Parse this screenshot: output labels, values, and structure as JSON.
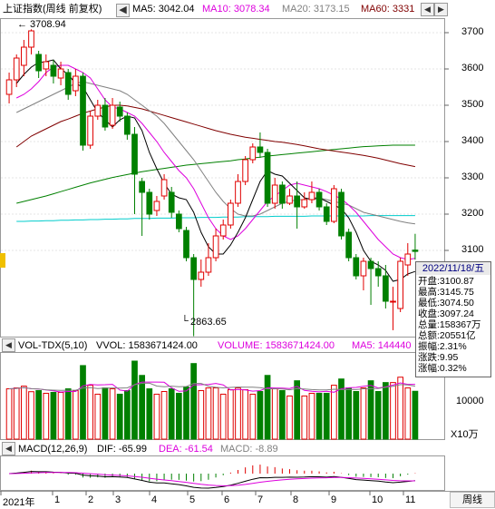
{
  "header": {
    "title": "上证指数(周线 前复权)",
    "ma5": "MA5: 3042.04",
    "ma10": "MA10: 3078.34",
    "ma20": "MA20: 3173.15",
    "ma60": "MA60: 3331",
    "colors": {
      "ma5": "#000000",
      "ma10": "#dd00dd",
      "ma20": "#808080",
      "ma60": "#800000",
      "ma120": "#008000",
      "ma250": "#00cccc"
    }
  },
  "price_axis": [
    "3700",
    "3600",
    "3500",
    "3400",
    "3300",
    "3200",
    "3100"
  ],
  "annotations": {
    "high": "3708.94",
    "low": "2863.65"
  },
  "volume": {
    "title": "VOL-TDX(5,10)",
    "vvol": "VVOL: 1583671424.00",
    "volume": "VOLUME: 1583671424.00",
    "ma5": "MA5: 144440",
    "axis_label": "10000",
    "unit": "X10万"
  },
  "macd": {
    "title": "MACD(12,26,9)",
    "dif": "DIF: -65.99",
    "dea": "DEA: -61.54",
    "macd": "MACD: -8.89"
  },
  "time_axis": [
    "2021年",
    "1",
    "2",
    "3",
    "4",
    "5",
    "6",
    "7",
    "8",
    "9",
    "10",
    "11"
  ],
  "period_button": "周线",
  "info_panel": {
    "date": "2022/11/18/五",
    "rows": [
      {
        "label": "开盘",
        "value": "3100.87"
      },
      {
        "label": "最高",
        "value": "3145.75"
      },
      {
        "label": "最低",
        "value": "3074.50"
      },
      {
        "label": "收盘",
        "value": "3097.24"
      },
      {
        "label": "总量",
        "value": "158367万"
      },
      {
        "label": "总额",
        "value": "20551亿"
      },
      {
        "label": "振幅",
        "value": "2.31%"
      },
      {
        "label": "涨跌",
        "value": "9.95"
      },
      {
        "label": "涨幅",
        "value": "0.32%"
      }
    ]
  },
  "chart_data": {
    "type": "candlestick",
    "price_ylim": [
      2860,
      3740
    ],
    "candles": [
      {
        "o": 3530,
        "c": 3570,
        "h": 3590,
        "l": 3505
      },
      {
        "o": 3570,
        "c": 3630,
        "h": 3640,
        "l": 3550
      },
      {
        "o": 3610,
        "c": 3660,
        "h": 3680,
        "l": 3580
      },
      {
        "o": 3660,
        "c": 3705,
        "h": 3708.94,
        "l": 3640
      },
      {
        "o": 3640,
        "c": 3595,
        "h": 3650,
        "l": 3575
      },
      {
        "o": 3600,
        "c": 3620,
        "h": 3640,
        "l": 3580
      },
      {
        "o": 3610,
        "c": 3580,
        "h": 3625,
        "l": 3560
      },
      {
        "o": 3575,
        "c": 3600,
        "h": 3620,
        "l": 3555
      },
      {
        "o": 3590,
        "c": 3530,
        "h": 3600,
        "l": 3515
      },
      {
        "o": 3540,
        "c": 3580,
        "h": 3600,
        "l": 3525
      },
      {
        "o": 3580,
        "c": 3390,
        "h": 3590,
        "l": 3375
      },
      {
        "o": 3390,
        "c": 3470,
        "h": 3485,
        "l": 3380
      },
      {
        "o": 3470,
        "c": 3500,
        "h": 3515,
        "l": 3460
      },
      {
        "o": 3500,
        "c": 3440,
        "h": 3520,
        "l": 3430
      },
      {
        "o": 3445,
        "c": 3500,
        "h": 3520,
        "l": 3435
      },
      {
        "o": 3495,
        "c": 3470,
        "h": 3510,
        "l": 3455
      },
      {
        "o": 3470,
        "c": 3420,
        "h": 3480,
        "l": 3405
      },
      {
        "o": 3420,
        "c": 3310,
        "h": 3440,
        "l": 3200
      },
      {
        "o": 3290,
        "c": 3260,
        "h": 3300,
        "l": 3140
      },
      {
        "o": 3260,
        "c": 3200,
        "h": 3270,
        "l": 3185
      },
      {
        "o": 3210,
        "c": 3235,
        "h": 3250,
        "l": 3195
      },
      {
        "o": 3250,
        "c": 3295,
        "h": 3310,
        "l": 3240
      },
      {
        "o": 3260,
        "c": 3205,
        "h": 3275,
        "l": 3190
      },
      {
        "o": 3200,
        "c": 3160,
        "h": 3210,
        "l": 3150
      },
      {
        "o": 3155,
        "c": 3080,
        "h": 3165,
        "l": 3070
      },
      {
        "o": 3080,
        "c": 3020,
        "h": 3090,
        "l": 2863.65
      },
      {
        "o": 3020,
        "c": 3040,
        "h": 3075,
        "l": 3000
      },
      {
        "o": 3040,
        "c": 3080,
        "h": 3120,
        "l": 3030
      },
      {
        "o": 3080,
        "c": 3140,
        "h": 3160,
        "l": 3070
      },
      {
        "o": 3140,
        "c": 3170,
        "h": 3185,
        "l": 3130
      },
      {
        "o": 3170,
        "c": 3230,
        "h": 3240,
        "l": 3160
      },
      {
        "o": 3230,
        "c": 3290,
        "h": 3310,
        "l": 3220
      },
      {
        "o": 3290,
        "c": 3350,
        "h": 3360,
        "l": 3280
      },
      {
        "o": 3350,
        "c": 3385,
        "h": 3395,
        "l": 3340
      },
      {
        "o": 3385,
        "c": 3370,
        "h": 3425,
        "l": 3355
      },
      {
        "o": 3370,
        "c": 3230,
        "h": 3380,
        "l": 3220
      },
      {
        "o": 3230,
        "c": 3280,
        "h": 3300,
        "l": 3215
      },
      {
        "o": 3280,
        "c": 3230,
        "h": 3290,
        "l": 3215
      },
      {
        "o": 3230,
        "c": 3250,
        "h": 3270,
        "l": 3225
      },
      {
        "o": 3250,
        "c": 3220,
        "h": 3290,
        "l": 3160
      },
      {
        "o": 3220,
        "c": 3240,
        "h": 3260,
        "l": 3215
      },
      {
        "o": 3240,
        "c": 3260,
        "h": 3290,
        "l": 3230
      },
      {
        "o": 3260,
        "c": 3220,
        "h": 3270,
        "l": 3210
      },
      {
        "o": 3220,
        "c": 3180,
        "h": 3230,
        "l": 3170
      },
      {
        "o": 3180,
        "c": 3270,
        "h": 3280,
        "l": 3175
      },
      {
        "o": 3260,
        "c": 3140,
        "h": 3270,
        "l": 3130
      },
      {
        "o": 3150,
        "c": 3080,
        "h": 3160,
        "l": 3070
      },
      {
        "o": 3080,
        "c": 3030,
        "h": 3090,
        "l": 3020
      },
      {
        "o": 3030,
        "c": 3070,
        "h": 3080,
        "l": 2990
      },
      {
        "o": 3070,
        "c": 3050,
        "h": 3080,
        "l": 2950
      },
      {
        "o": 3050,
        "c": 3030,
        "h": 3070,
        "l": 3000
      },
      {
        "o": 3030,
        "c": 2960,
        "h": 3060,
        "l": 2940
      },
      {
        "o": 2960,
        "c": 2960,
        "h": 3000,
        "l": 2880
      },
      {
        "o": 2940,
        "c": 3070,
        "h": 3080,
        "l": 2930
      },
      {
        "o": 3060,
        "c": 3090,
        "h": 3120,
        "l": 3030
      },
      {
        "o": 3100.87,
        "c": 3097.24,
        "h": 3145.75,
        "l": 3074.5
      }
    ],
    "ma5": [
      3560,
      3585,
      3605,
      3618,
      3620,
      3625,
      3600,
      3585,
      3560,
      3550,
      3515,
      3480,
      3460,
      3440,
      3460,
      3470,
      3465,
      3430,
      3370,
      3325,
      3285,
      3255,
      3245,
      3240,
      3205,
      3150,
      3110,
      3090,
      3090,
      3115,
      3150,
      3190,
      3240,
      3290,
      3320,
      3310,
      3305,
      3285,
      3265,
      3245,
      3240,
      3245,
      3235,
      3225,
      3215,
      3190,
      3150,
      3100,
      3070,
      3060,
      3045,
      3015,
      3020,
      3035,
      3042.04
    ],
    "ma10": [
      3520,
      3530,
      3545,
      3565,
      3590,
      3605,
      3610,
      3610,
      3600,
      3590,
      3575,
      3545,
      3515,
      3495,
      3490,
      3480,
      3470,
      3450,
      3425,
      3400,
      3370,
      3345,
      3320,
      3300,
      3270,
      3230,
      3190,
      3160,
      3140,
      3130,
      3140,
      3160,
      3185,
      3210,
      3235,
      3250,
      3265,
      3280,
      3285,
      3280,
      3275,
      3270,
      3262,
      3252,
      3242,
      3225,
      3205,
      3180,
      3155,
      3130,
      3110,
      3090,
      3080,
      3075,
      3078.34
    ],
    "ma20": [
      3480,
      3490,
      3500,
      3510,
      3520,
      3530,
      3540,
      3550,
      3560,
      3565,
      3560,
      3555,
      3550,
      3545,
      3540,
      3530,
      3515,
      3500,
      3485,
      3470,
      3450,
      3425,
      3400,
      3375,
      3350,
      3320,
      3290,
      3260,
      3235,
      3215,
      3200,
      3195,
      3195,
      3200,
      3210,
      3220,
      3230,
      3235,
      3240,
      3240,
      3245,
      3245,
      3240,
      3235,
      3230,
      3225,
      3215,
      3205,
      3200,
      3195,
      3190,
      3185,
      3180,
      3176,
      3173.15
    ],
    "ma60": [
      3385,
      3400,
      3415,
      3425,
      3435,
      3445,
      3455,
      3462,
      3470,
      3478,
      3484,
      3490,
      3495,
      3500,
      3500,
      3498,
      3494,
      3490,
      3484,
      3478,
      3472,
      3466,
      3460,
      3454,
      3448,
      3442,
      3436,
      3430,
      3425,
      3420,
      3416,
      3412,
      3409,
      3406,
      3403,
      3400,
      3398,
      3395,
      3392,
      3388,
      3384,
      3380,
      3377,
      3374,
      3371,
      3368,
      3365,
      3362,
      3358,
      3354,
      3349,
      3344,
      3339,
      3335,
      3331
    ],
    "ma120": [
      3230,
      3235,
      3240,
      3245,
      3250,
      3256,
      3262,
      3268,
      3274,
      3280,
      3286,
      3291,
      3296,
      3301,
      3305,
      3309,
      3313,
      3317,
      3320,
      3323,
      3326,
      3329,
      3332,
      3335,
      3337,
      3339,
      3341,
      3343,
      3345,
      3347,
      3350,
      3352,
      3355,
      3357,
      3360,
      3362,
      3364,
      3366,
      3368,
      3370,
      3372,
      3374,
      3376,
      3378,
      3380,
      3382,
      3384,
      3386,
      3387,
      3388,
      3389,
      3390,
      3390,
      3390,
      3390
    ],
    "ma250": [
      3180,
      3180,
      3181,
      3181,
      3182,
      3182,
      3183,
      3183,
      3184,
      3184,
      3185,
      3185,
      3186,
      3186,
      3187,
      3187,
      3188,
      3188,
      3188,
      3189,
      3189,
      3189,
      3190,
      3190,
      3190,
      3191,
      3191,
      3191,
      3192,
      3192,
      3192,
      3193,
      3193,
      3193,
      3193,
      3194,
      3194,
      3194,
      3194,
      3194,
      3195,
      3195,
      3195,
      3195,
      3195,
      3195,
      3195,
      3195,
      3196,
      3196,
      3196,
      3196,
      3196,
      3196,
      3196
    ]
  }
}
